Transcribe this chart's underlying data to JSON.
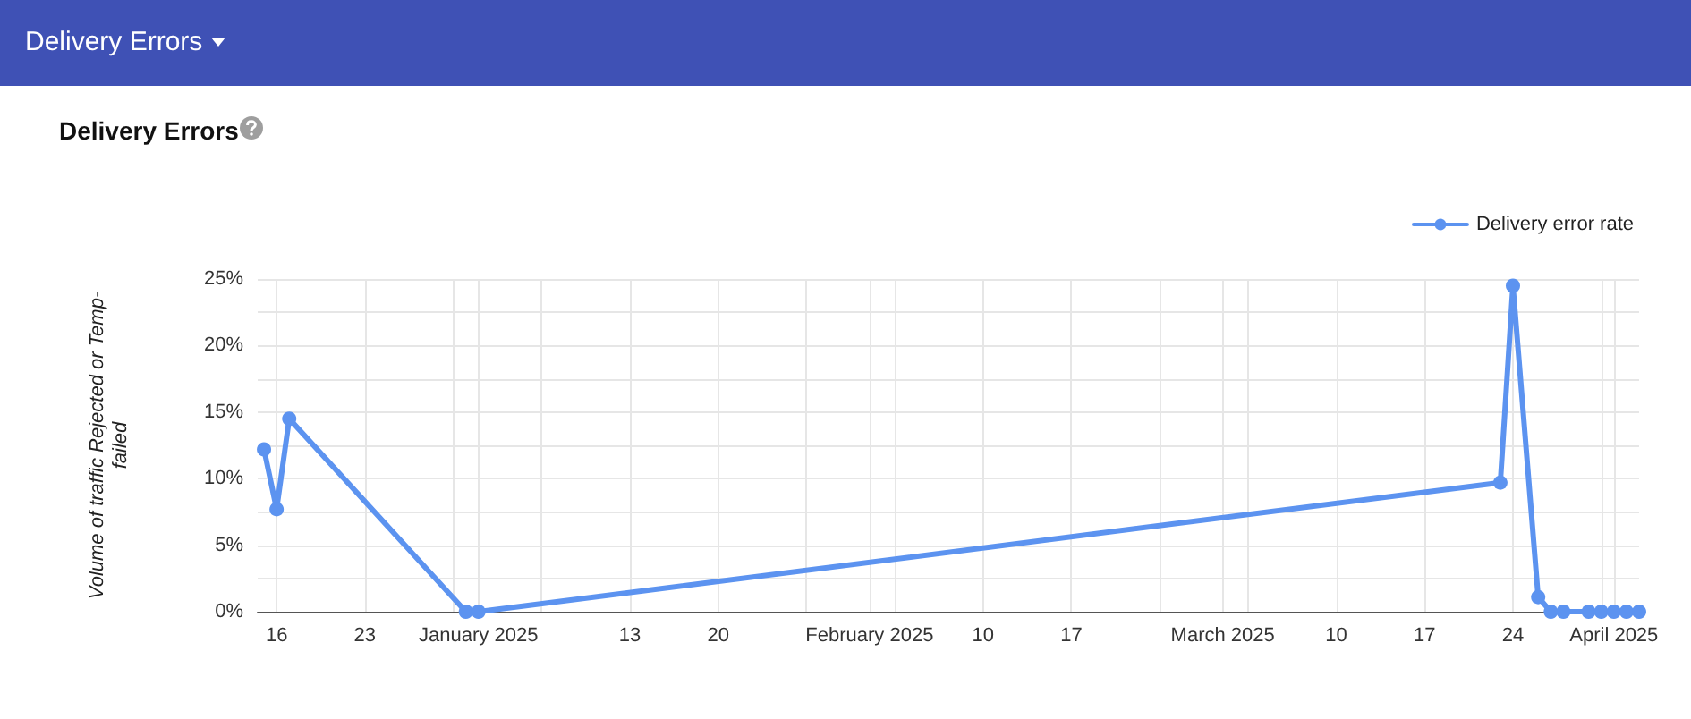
{
  "chart_data": {
    "type": "line",
    "title": "Delivery Errors",
    "ylabel": "Volume of traffic Rejected or Temp-failed",
    "annotations": [
      "Delivery Errors"
    ],
    "x": [
      "2024-12-15",
      "2024-12-16",
      "2024-12-17",
      "2024-12-31",
      "2025-01-01",
      "2025-03-23",
      "2025-03-24",
      "2025-03-26",
      "2025-03-27",
      "2025-03-28",
      "2025-03-30",
      "2025-03-31",
      "2025-04-01",
      "2025-04-02",
      "2025-04-03"
    ],
    "series": [
      {
        "name": "Delivery error rate",
        "color": "#5c93f0",
        "values": [
          12.2,
          7.7,
          14.5,
          0,
          0,
          9.7,
          24.5,
          1.1,
          0,
          0,
          0,
          0,
          0,
          0,
          0
        ]
      }
    ],
    "xlim": [
      "2024-12-14T12:00",
      "2025-04-03"
    ],
    "xticks": [
      {
        "value": "2024-12-16",
        "label": "16"
      },
      {
        "value": "2024-12-23",
        "label": "23"
      },
      {
        "value": "2024-12-30",
        "label": null
      },
      {
        "value": "2025-01-01",
        "label": "January 2025"
      },
      {
        "value": "2025-01-06",
        "label": null
      },
      {
        "value": "2025-01-13",
        "label": "13"
      },
      {
        "value": "2025-01-20",
        "label": "20"
      },
      {
        "value": "2025-01-27",
        "label": null
      },
      {
        "value": "2025-02-01",
        "label": "February 2025"
      },
      {
        "value": "2025-02-03",
        "label": null
      },
      {
        "value": "2025-02-10",
        "label": "10"
      },
      {
        "value": "2025-02-17",
        "label": "17"
      },
      {
        "value": "2025-02-24",
        "label": null
      },
      {
        "value": "2025-03-01",
        "label": "March 2025"
      },
      {
        "value": "2025-03-03",
        "label": null
      },
      {
        "value": "2025-03-10",
        "label": "10"
      },
      {
        "value": "2025-03-17",
        "label": "17"
      },
      {
        "value": "2025-03-24",
        "label": "24"
      },
      {
        "value": "2025-03-31",
        "label": null
      },
      {
        "value": "2025-04-01",
        "label": "April 2025"
      }
    ],
    "ylim": [
      0,
      25
    ],
    "yticks": [
      {
        "value": 0,
        "label": "0%"
      },
      {
        "value": 2.5,
        "label": null
      },
      {
        "value": 5,
        "label": "5%"
      },
      {
        "value": 7.5,
        "label": null
      },
      {
        "value": 10,
        "label": "10%"
      },
      {
        "value": 12.5,
        "label": null
      },
      {
        "value": 15,
        "label": "15%"
      },
      {
        "value": 17.5,
        "label": null
      },
      {
        "value": 20,
        "label": "20%"
      },
      {
        "value": 22.5,
        "label": null
      },
      {
        "value": 25,
        "label": "25%"
      }
    ],
    "grid": true,
    "legend": "top right",
    "marker": "circle",
    "line_style": "solid"
  }
}
